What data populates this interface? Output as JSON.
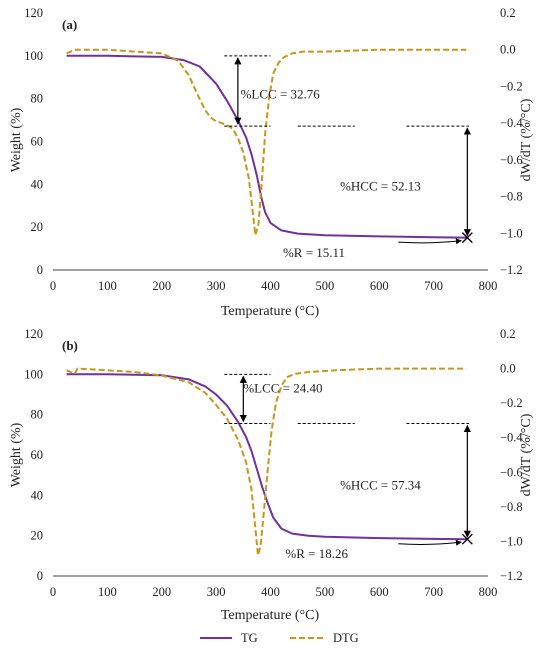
{
  "colors": {
    "tg": "#7030a0",
    "dtg": "#c9961a",
    "axis": "#444444",
    "annotation": "#000000"
  },
  "legend": {
    "placement": "bottom-center",
    "tg_label": "TG",
    "dtg_label": "DTG"
  },
  "chart_data": [
    {
      "type": "line",
      "panel_label": "(a)",
      "xlabel": "Temperature (°C)",
      "ylabel": "Weight (%)",
      "y2label": "dW/dT (%/°C)",
      "xlim": [
        0,
        800
      ],
      "ylim": [
        0,
        120
      ],
      "y2lim": [
        -1.2,
        0.2
      ],
      "xticks": [
        "0",
        "100",
        "200",
        "300",
        "400",
        "500",
        "600",
        "700",
        "800"
      ],
      "yticks": [
        "0",
        "20",
        "40",
        "60",
        "80",
        "100",
        "120"
      ],
      "y2ticks": [
        "0.2",
        "0.0",
        "−0.2",
        "−0.4",
        "−0.6",
        "−0.8",
        "−1.0",
        "−1.2"
      ],
      "grid": false,
      "series": [
        {
          "name": "TG",
          "axis": "left",
          "style": "solid",
          "x": [
            25,
            100,
            200,
            240,
            270,
            300,
            320,
            340,
            355,
            365,
            375,
            383,
            390,
            400,
            420,
            450,
            500,
            600,
            700,
            760
          ],
          "y": [
            100,
            100,
            99.5,
            98,
            95,
            87,
            79,
            70,
            62,
            54,
            44,
            34,
            27,
            22,
            18.5,
            17,
            16.2,
            15.7,
            15.3,
            15.11
          ]
        },
        {
          "name": "DTG",
          "axis": "right",
          "style": "dashed",
          "x": [
            25,
            40,
            100,
            150,
            200,
            230,
            250,
            265,
            280,
            290,
            300,
            310,
            320,
            330,
            340,
            350,
            360,
            368,
            372,
            378,
            384,
            390,
            397,
            405,
            415,
            425,
            440,
            460,
            500,
            600,
            700,
            760
          ],
          "y": [
            -0.02,
            0.0,
            0.0,
            -0.01,
            -0.02,
            -0.06,
            -0.14,
            -0.24,
            -0.33,
            -0.37,
            -0.39,
            -0.4,
            -0.41,
            -0.43,
            -0.48,
            -0.56,
            -0.7,
            -0.9,
            -1.01,
            -0.95,
            -0.72,
            -0.46,
            -0.27,
            -0.13,
            -0.07,
            -0.04,
            -0.02,
            -0.01,
            -0.01,
            0.0,
            0.0,
            0.0
          ]
        }
      ],
      "annotations": {
        "lcc": "%LCC = 32.76",
        "hcc": "%HCC = 52.13",
        "residue": "%R = 15.11",
        "lcc_top_weight": 100,
        "lcc_bottom_weight": 67.2,
        "hcc_bottom_weight": 15.11,
        "lcc_arrow_x": 340,
        "hcc_arrow_x": 762,
        "lcc_dash_x": [
          315,
          400
        ],
        "level_dash_x": [
          450,
          555
        ],
        "hcc_dash_x": [
          650,
          765
        ],
        "lcc_label_anchor": [
          345,
          82
        ],
        "hcc_label_anchor": [
          528,
          39
        ],
        "residue_label_anchor": [
          480,
          8
        ],
        "residue_arrow_start": [
          635,
          13
        ]
      }
    },
    {
      "type": "line",
      "panel_label": "(b)",
      "xlabel": "Temperature (°C)",
      "ylabel": "Weight (%)",
      "y2label": "dW/dT (%/°C)",
      "xlim": [
        0,
        800
      ],
      "ylim": [
        0,
        120
      ],
      "y2lim": [
        -1.2,
        0.2
      ],
      "xticks": [
        "0",
        "100",
        "200",
        "300",
        "400",
        "500",
        "600",
        "700",
        "800"
      ],
      "yticks": [
        "0",
        "20",
        "40",
        "60",
        "80",
        "100",
        "120"
      ],
      "y2ticks": [
        "0.2",
        "0.0",
        "−0.2",
        "−0.4",
        "−0.6",
        "−0.8",
        "−1.0",
        "−1.2"
      ],
      "grid": false,
      "series": [
        {
          "name": "TG",
          "axis": "left",
          "style": "solid",
          "x": [
            25,
            100,
            200,
            250,
            280,
            300,
            320,
            340,
            355,
            365,
            375,
            385,
            395,
            405,
            420,
            440,
            470,
            500,
            600,
            700,
            760
          ],
          "y": [
            100,
            100,
            99.5,
            97.5,
            94,
            90,
            84.5,
            76.5,
            69,
            62,
            53,
            44,
            36,
            29,
            23.5,
            21,
            20,
            19.5,
            18.8,
            18.4,
            18.26
          ]
        },
        {
          "name": "DTG",
          "axis": "right",
          "style": "dashed",
          "x": [
            25,
            40,
            45,
            100,
            150,
            200,
            250,
            280,
            300,
            320,
            340,
            355,
            365,
            372,
            377,
            382,
            388,
            395,
            402,
            410,
            420,
            430,
            445,
            470,
            520,
            600,
            700,
            760
          ],
          "y": [
            -0.01,
            -0.03,
            0.0,
            -0.01,
            -0.02,
            -0.04,
            -0.08,
            -0.14,
            -0.21,
            -0.29,
            -0.41,
            -0.54,
            -0.7,
            -0.92,
            -1.08,
            -1.02,
            -0.82,
            -0.58,
            -0.36,
            -0.2,
            -0.1,
            -0.05,
            -0.03,
            -0.02,
            -0.01,
            0.0,
            0.0,
            0.0
          ]
        }
      ],
      "annotations": {
        "lcc": "%LCC = 24.40",
        "hcc": "%HCC = 57.34",
        "residue": "%R = 18.26",
        "lcc_top_weight": 100,
        "lcc_bottom_weight": 75.6,
        "hcc_bottom_weight": 18.26,
        "lcc_arrow_x": 350,
        "hcc_arrow_x": 762,
        "lcc_dash_x": [
          315,
          400
        ],
        "level_dash_x": [
          450,
          555
        ],
        "hcc_dash_x": [
          650,
          765
        ],
        "lcc_label_anchor": [
          350,
          93
        ],
        "hcc_label_anchor": [
          528,
          45
        ],
        "residue_label_anchor": [
          485,
          11
        ],
        "residue_arrow_start": [
          635,
          16
        ]
      }
    }
  ]
}
